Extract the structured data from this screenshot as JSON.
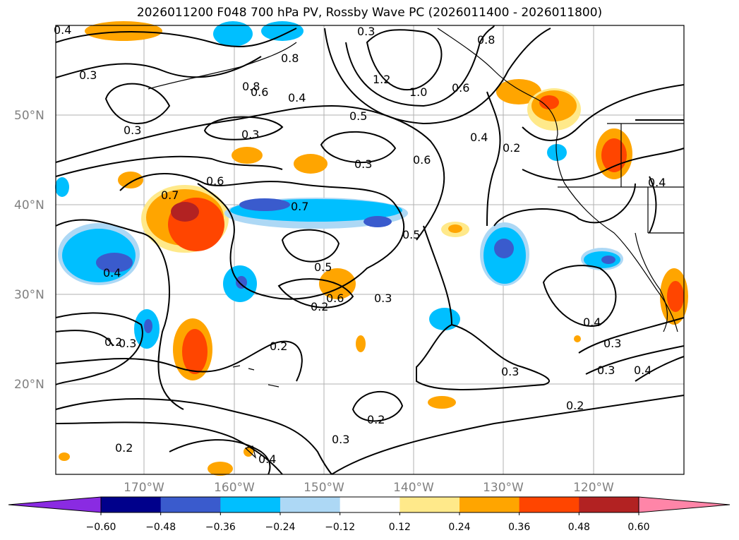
{
  "title": "2026011200 F048 700 hPa PV, Rossby Wave PC (2026011400 - 2026011800)",
  "lat_labels": [
    "50°N",
    "40°N",
    "30°N",
    "20°N"
  ],
  "lon_labels": [
    "170°W",
    "160°W",
    "150°W",
    "140°W",
    "130°W",
    "120°W"
  ],
  "colorbar": {
    "ticks": [
      "−0.60",
      "−0.48",
      "−0.36",
      "−0.24",
      "−0.12",
      "0.12",
      "0.24",
      "0.36",
      "0.48",
      "0.60"
    ],
    "colors": [
      "#8a2be2",
      "#00008b",
      "#3a5bcd",
      "#00bfff",
      "#add8f5",
      "#ffffff",
      "#ffe98a",
      "#ffa500",
      "#ff4500",
      "#b22222",
      "#ff85a8"
    ]
  },
  "contour_labels": [
    "0.4",
    "0.3",
    "0.3",
    "0.3",
    "0.8",
    "0.6",
    "0.4",
    "0.5",
    "0.3",
    "0.6",
    "0.6",
    "0.7",
    "0.7",
    "0.4",
    "0.5",
    "0.6",
    "0.5",
    "0.3",
    "0.3",
    "0.2",
    "0.3",
    "0.2",
    "0.2",
    "0.4",
    "0.3",
    "0.2",
    "0.4",
    "0.3",
    "0.3",
    "0.4",
    "1.2",
    "1.0",
    "0.6",
    "0.4",
    "0.2",
    "0.8",
    "0.8",
    "0.4",
    "0.2",
    "0.3",
    "0.2"
  ],
  "colors": {
    "contour": "#000000",
    "grid": "#b0b0b0",
    "axis_label": "#808080"
  }
}
